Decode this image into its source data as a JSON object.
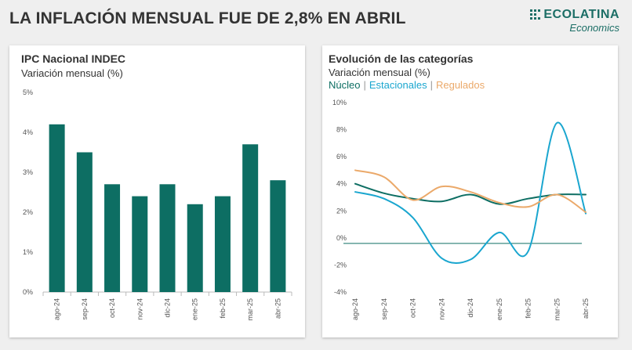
{
  "headline": "LA INFLACIÓN MENSUAL FUE DE 2,8% EN ABRIL",
  "brand": {
    "name": "ECOLATINA",
    "sub": "Economics"
  },
  "colors": {
    "bar": "#0d6e63",
    "nucleo": "#0d6e63",
    "estacionales": "#1aa6cf",
    "regulados": "#eba96a",
    "axis": "#bbbbbb",
    "tick_text": "#555555",
    "title_text": "#333333",
    "zero_line": "#0d6e63",
    "separator": "#999999"
  },
  "chart_data": [
    {
      "type": "bar",
      "title": "IPC Nacional INDEC",
      "subtitle": "Variación mensual (%)",
      "categories": [
        "ago-24",
        "sep-24",
        "oct-24",
        "nov-24",
        "dic-24",
        "ene-25",
        "feb-25",
        "mar-25",
        "abr-25"
      ],
      "values": [
        4.2,
        3.5,
        2.7,
        2.4,
        2.7,
        2.2,
        2.4,
        3.7,
        2.8
      ],
      "ylim": [
        0,
        5
      ],
      "yticks": [
        0,
        1,
        2,
        3,
        4,
        5
      ],
      "ytick_labels": [
        "0%",
        "1%",
        "2%",
        "3%",
        "4%",
        "5%"
      ],
      "grid": false
    },
    {
      "type": "line",
      "title": "Evolución de las categorías",
      "subtitle": "Variación mensual (%)",
      "separator": "|",
      "categories": [
        "ago-24",
        "sep-24",
        "oct-24",
        "nov-24",
        "dic-24",
        "ene-25",
        "feb-25",
        "mar-25",
        "abr-25"
      ],
      "series": [
        {
          "name": "Núcleo",
          "color_key": "nucleo",
          "values": [
            4.0,
            3.3,
            2.9,
            2.7,
            3.2,
            2.5,
            2.9,
            3.2,
            3.2
          ]
        },
        {
          "name": "Estacionales",
          "color_key": "estacionales",
          "values": [
            3.4,
            2.9,
            1.5,
            -1.5,
            -1.6,
            0.4,
            -1.0,
            8.5,
            1.8
          ]
        },
        {
          "name": "Regulados",
          "color_key": "regulados",
          "values": [
            5.0,
            4.5,
            2.8,
            3.8,
            3.4,
            2.6,
            2.3,
            3.2,
            1.9
          ]
        }
      ],
      "ylim": [
        -4,
        10
      ],
      "yticks": [
        -4,
        -2,
        0,
        2,
        4,
        6,
        8,
        10
      ],
      "ytick_labels": [
        "-4%",
        "-2%",
        "0%",
        "2%",
        "4%",
        "6%",
        "8%",
        "10%"
      ],
      "grid": false
    }
  ]
}
